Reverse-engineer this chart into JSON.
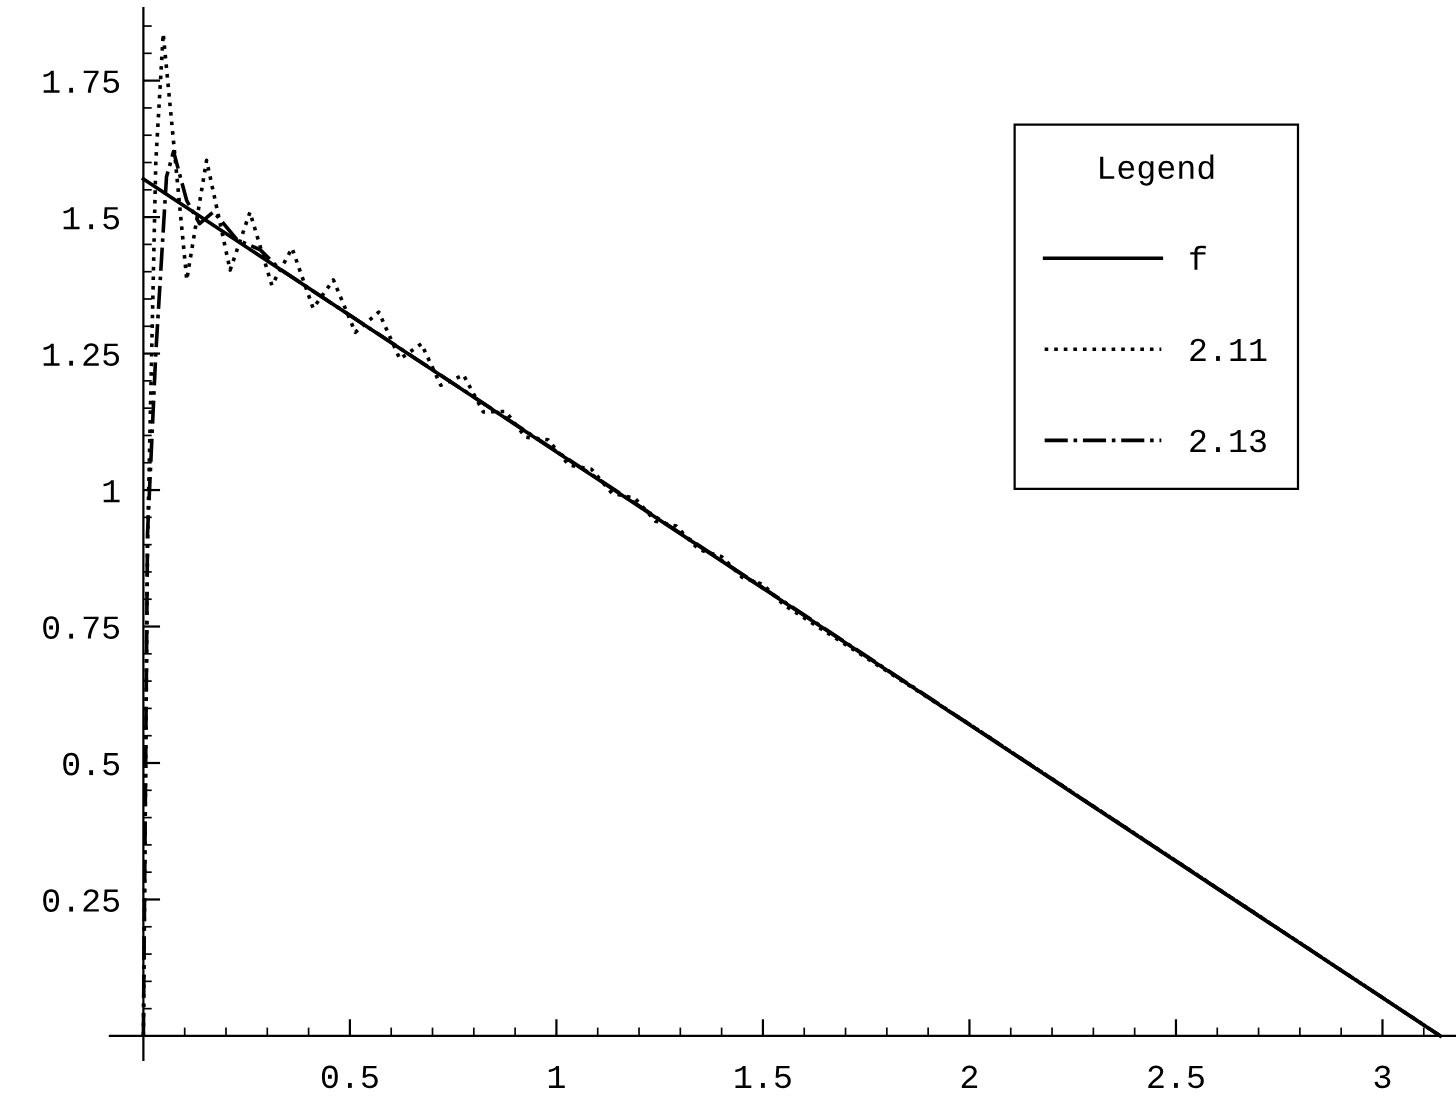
{
  "chart_data": {
    "type": "line",
    "legend_title": "Legend",
    "legend": "top right",
    "grid": false,
    "marker": "none",
    "xlim": [
      -0.081,
      3.178
    ],
    "ylim": [
      -0.044,
      1.883
    ],
    "xticks": [
      0.5,
      1,
      1.5,
      2,
      2.5,
      3
    ],
    "yticks": [
      0.25,
      0.5,
      0.75,
      1,
      1.25,
      1.5,
      1.75
    ],
    "series": [
      {
        "name": "f",
        "color": "#000000",
        "line_style": "solid",
        "x": [
          0,
          3.14
        ],
        "values": [
          1.57,
          0
        ]
      },
      {
        "name": "2.11",
        "color": "#000000",
        "line_style": "dotted",
        "x": [
          0,
          0.01,
          0.03,
          0.048,
          0.105,
          0.153,
          0.21,
          0.258,
          0.311,
          0.36,
          0.411,
          0.46,
          0.513,
          0.57,
          0.621,
          0.673,
          0.72,
          0.775,
          0.823,
          0.877,
          0.925,
          0.98,
          1.03,
          1.085,
          1.135,
          1.19,
          1.24,
          1.29,
          1.345,
          1.4,
          1.45,
          1.5,
          1.55,
          2.0,
          2.5,
          3.14
        ],
        "values": [
          0,
          0.9,
          1.6,
          1.836,
          1.385,
          1.604,
          1.403,
          1.509,
          1.375,
          1.443,
          1.333,
          1.385,
          1.289,
          1.326,
          1.24,
          1.268,
          1.192,
          1.211,
          1.143,
          1.144,
          1.097,
          1.092,
          1.046,
          1.038,
          0.994,
          0.985,
          0.943,
          0.934,
          0.891,
          0.878,
          0.84,
          0.827,
          0.79,
          0.571,
          0.321,
          0
        ]
      },
      {
        "name": "2.13",
        "color": "#000000",
        "line_style": "dashdot",
        "x": [
          0,
          0.005,
          0.01,
          0.03,
          0.056,
          0.073,
          0.105,
          0.136,
          0.17,
          0.226,
          0.283,
          0.33,
          0.5,
          1.0,
          2.0,
          3.14
        ],
        "values": [
          0,
          0.45,
          0.92,
          1.25,
          1.574,
          1.62,
          1.53,
          1.488,
          1.51,
          1.459,
          1.44,
          1.405,
          1.32,
          1.071,
          0.571,
          0
        ]
      }
    ]
  }
}
